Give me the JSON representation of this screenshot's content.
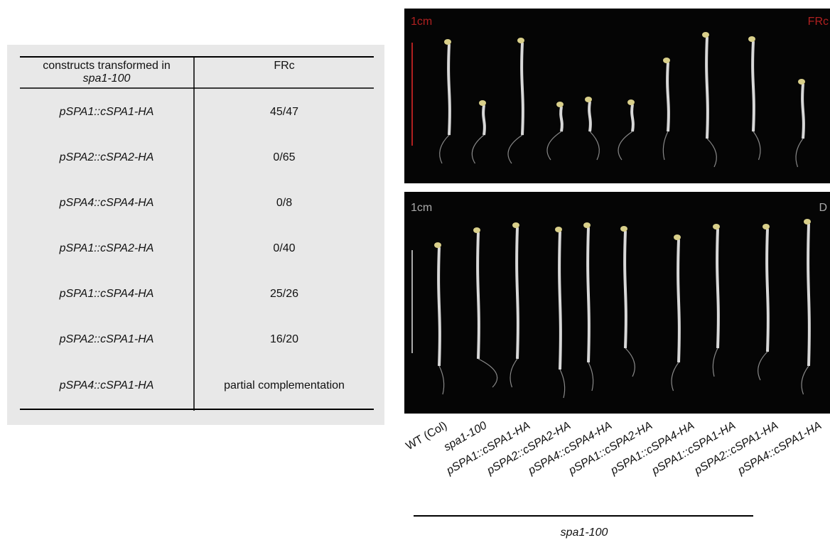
{
  "table": {
    "header": {
      "construct": "constructs transformed in",
      "construct_line": "spa1-100",
      "result": "FRc"
    },
    "rows": [
      [
        "pSPA1::cSPA1-HA",
        "45/47"
      ],
      [
        "pSPA2::cSPA2-HA",
        "0/65"
      ],
      [
        "pSPA4::cSPA4-HA",
        "0/8"
      ],
      [
        "pSPA1::cSPA2-HA",
        "0/40"
      ],
      [
        "pSPA1::cSPA4-HA",
        "25/26"
      ],
      [
        "pSPA2::cSPA1-HA",
        "16/20"
      ],
      [
        "pSPA4::cSPA1-HA",
        "partial complementation"
      ]
    ]
  },
  "photos": {
    "top": {
      "scale": "1cm",
      "condition": "FRc"
    },
    "bottom": {
      "scale": "1cm",
      "condition": "D"
    },
    "lanes": [
      "WT (Col)",
      "spa1-100",
      "pSPA1::cSPA1-HA",
      "pSPA2::cSPA2-HA",
      "pSPA4::cSPA4-HA",
      "pSPA1::cSPA2-HA",
      "pSPA1::cSPA4-HA",
      "pSPA1::cSPA1-HA",
      "pSPA2::cSPA1-HA",
      "pSPA4::cSPA1-HA"
    ],
    "group": "spa1-100"
  }
}
